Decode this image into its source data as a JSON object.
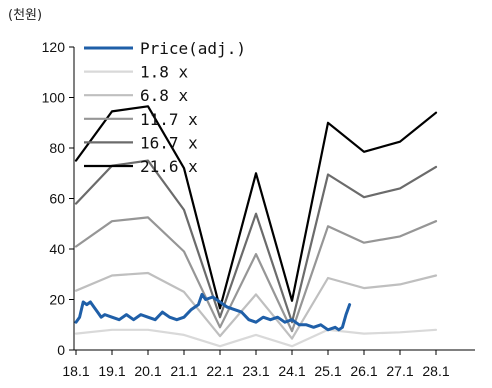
{
  "chart_data": {
    "type": "line",
    "unit_label": "(천원)",
    "x_ticks": [
      "18.1",
      "19.1",
      "20.1",
      "21.1",
      "22.1",
      "23.1",
      "24.1",
      "25.1",
      "26.1",
      "27.1",
      "28.1"
    ],
    "y_ticks": [
      "0",
      "20",
      "40",
      "60",
      "80",
      "100",
      "120"
    ],
    "ylim": [
      0,
      120
    ],
    "xlim": [
      0,
      10
    ],
    "grid": false,
    "legend_position": "top-left",
    "series": [
      {
        "name": "Price(adj.)",
        "color": "#1f5fa8",
        "points": [
          [
            0,
            11
          ],
          [
            0.1,
            13
          ],
          [
            0.2,
            19
          ],
          [
            0.3,
            18
          ],
          [
            0.4,
            19
          ],
          [
            0.5,
            17
          ],
          [
            0.6,
            15
          ],
          [
            0.7,
            13
          ],
          [
            0.8,
            14
          ],
          [
            1.0,
            13
          ],
          [
            1.2,
            12
          ],
          [
            1.4,
            14
          ],
          [
            1.6,
            12
          ],
          [
            1.8,
            14
          ],
          [
            2.0,
            13
          ],
          [
            2.2,
            12
          ],
          [
            2.4,
            15
          ],
          [
            2.6,
            13
          ],
          [
            2.8,
            12
          ],
          [
            3.0,
            13
          ],
          [
            3.2,
            16
          ],
          [
            3.4,
            18
          ],
          [
            3.5,
            22
          ],
          [
            3.6,
            20
          ],
          [
            3.8,
            21
          ],
          [
            4.0,
            19
          ],
          [
            4.2,
            17
          ],
          [
            4.4,
            16
          ],
          [
            4.6,
            15
          ],
          [
            4.8,
            12
          ],
          [
            5.0,
            11
          ],
          [
            5.2,
            13
          ],
          [
            5.4,
            12
          ],
          [
            5.6,
            13
          ],
          [
            5.8,
            11
          ],
          [
            6.0,
            12
          ],
          [
            6.2,
            10
          ],
          [
            6.4,
            10
          ],
          [
            6.6,
            9
          ],
          [
            6.8,
            10
          ],
          [
            7.0,
            8
          ],
          [
            7.2,
            9
          ],
          [
            7.3,
            8
          ],
          [
            7.4,
            9
          ],
          [
            7.5,
            14
          ],
          [
            7.6,
            18
          ]
        ]
      },
      {
        "name": "1.8 x",
        "color": "#d9d9d9",
        "points": [
          [
            0,
            6.5
          ],
          [
            1,
            8
          ],
          [
            2,
            8
          ],
          [
            3,
            6
          ],
          [
            4,
            1.5
          ],
          [
            5,
            6
          ],
          [
            6,
            1.5
          ],
          [
            7,
            8
          ],
          [
            8,
            6.5
          ],
          [
            9,
            7
          ],
          [
            10,
            8
          ]
        ]
      },
      {
        "name": "6.8 x",
        "color": "#bfbfbf",
        "points": [
          [
            0,
            23.5
          ],
          [
            1,
            29.5
          ],
          [
            2,
            30.5
          ],
          [
            3,
            23
          ],
          [
            4,
            5.5
          ],
          [
            5,
            22
          ],
          [
            6,
            4.5
          ],
          [
            7,
            28.5
          ],
          [
            8,
            24.5
          ],
          [
            9,
            26
          ],
          [
            10,
            29.5
          ]
        ]
      },
      {
        "name": "11.7 x",
        "color": "#969696",
        "points": [
          [
            0,
            41
          ],
          [
            1,
            51
          ],
          [
            2,
            52.5
          ],
          [
            3,
            39
          ],
          [
            4,
            9
          ],
          [
            5,
            38
          ],
          [
            6,
            7.5
          ],
          [
            7,
            49
          ],
          [
            8,
            42.5
          ],
          [
            9,
            45
          ],
          [
            10,
            51
          ]
        ]
      },
      {
        "name": "16.7 x",
        "color": "#6b6b6b",
        "points": [
          [
            0,
            58
          ],
          [
            1,
            73
          ],
          [
            2,
            75
          ],
          [
            3,
            55.5
          ],
          [
            4,
            13
          ],
          [
            5,
            54
          ],
          [
            6,
            11
          ],
          [
            7,
            69.5
          ],
          [
            8,
            60.5
          ],
          [
            9,
            64
          ],
          [
            10,
            72.5
          ]
        ]
      },
      {
        "name": "21.6 x",
        "color": "#000000",
        "points": [
          [
            0,
            75
          ],
          [
            1,
            94.5
          ],
          [
            2,
            96.5
          ],
          [
            3,
            72
          ],
          [
            4,
            16.5
          ],
          [
            5,
            70
          ],
          [
            6,
            19.5
          ],
          [
            7,
            90
          ],
          [
            8,
            78.5
          ],
          [
            9,
            82.5
          ],
          [
            10,
            94
          ]
        ]
      }
    ]
  }
}
